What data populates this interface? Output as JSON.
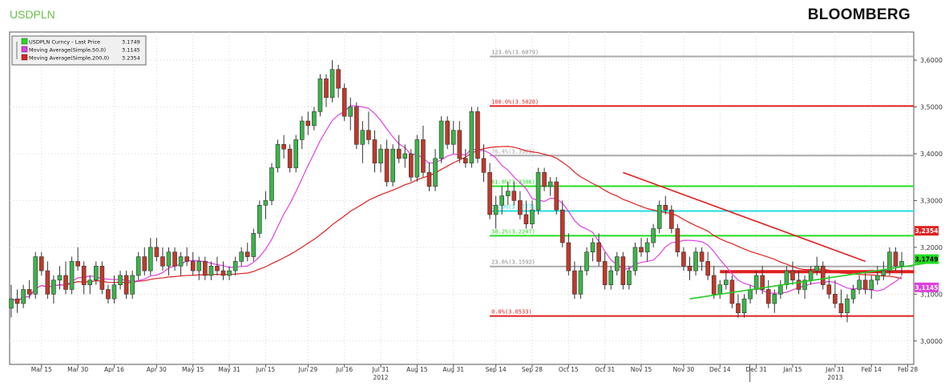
{
  "header": {
    "ticker": "USDPLN",
    "brand": "BLOOMBERG"
  },
  "colors": {
    "candle_up": "#3cb44b",
    "candle_down": "#c0392b",
    "ma50": "#e040e0",
    "ma200": "#e02020",
    "fib_red": "#e02020",
    "fib_green": "#22dd22",
    "fib_cyan": "#22dddd",
    "fib_gray": "#aaaaaa",
    "trend_red": "#e02020",
    "trend_green": "#22cc22"
  },
  "chart_data": {
    "type": "candlestick",
    "title": "USDPLN",
    "ylim": [
      2.95,
      3.66
    ],
    "y_ticks": [
      "3,6000",
      "3,5000",
      "3,4000",
      "3,3000",
      "3,2000",
      "3,1000",
      "3,0000"
    ],
    "y_tick_values": [
      3.6,
      3.5,
      3.4,
      3.3,
      3.2,
      3.1,
      3.0
    ],
    "x_ticks": [
      "Mar 15",
      "Mar 30",
      "Apr 16",
      "Apr 30",
      "May 15",
      "May 31",
      "Jun 15",
      "Jun 29",
      "Jul 16",
      "Jul 31",
      "Aug 15",
      "Aug 31",
      "Sep 14",
      "Sep 28",
      "Oct 15",
      "Oct 31",
      "Nov 15",
      "Nov 30",
      "Dec 14",
      "Dec 31",
      "Jan 15",
      "Jan 31",
      "Feb 14",
      "Feb 28"
    ],
    "x_years": [
      "2012",
      "2013"
    ],
    "legend": [
      {
        "label": "USDPLN Curncy - Last Price",
        "value": "3.1749",
        "color": "#22dd22"
      },
      {
        "label": "Moving Average(Simple,50,0)",
        "value": "3.1145",
        "color": "#e040e0"
      },
      {
        "label": "Moving Average(Simple,200,0)",
        "value": "3.2354",
        "color": "#e02020"
      }
    ],
    "last_values": [
      {
        "label": "3,2354",
        "value": 3.2354,
        "color": "#e02020"
      },
      {
        "label": "3,1749",
        "value": 3.1749,
        "color": "#22dd22"
      },
      {
        "label": "3,1145",
        "value": 3.1145,
        "color": "#e040e0"
      }
    ],
    "fib_levels": [
      {
        "label": "123.6%(3.6079)",
        "value": 3.6079,
        "color": "#aaaaaa",
        "label_color": "#888888"
      },
      {
        "label": "100.0%(3.5020)",
        "value": 3.502,
        "color": "#e02020",
        "label_color": "#e02020"
      },
      {
        "label": "76.4%(3.3961)",
        "value": 3.3961,
        "color": "#aaaaaa",
        "label_color": "#aaaaaa"
      },
      {
        "label": "61.8%(3.3306)",
        "value": 3.3306,
        "color": "#22dd22",
        "label_color": "#22dd22"
      },
      {
        "label": "50.0%(3.2777)",
        "value": 3.2777,
        "color": "#22dddd",
        "label_color": "#22dddd"
      },
      {
        "label": "38.2%(3.2247)",
        "value": 3.2247,
        "color": "#22dd22",
        "label_color": "#22dd22"
      },
      {
        "label": "23.6%(3.1592)",
        "value": 3.1592,
        "color": "#aaaaaa",
        "label_color": "#888888"
      },
      {
        "label": "0.0%(3.0533)",
        "value": 3.0533,
        "color": "#e02020",
        "label_color": "#e02020"
      }
    ],
    "support_line": {
      "value": 3.148,
      "from": "Dec 14",
      "to": "Feb 28"
    },
    "trendlines": [
      {
        "name": "downtrend",
        "color": "#e02020",
        "points": [
          [
            101,
            3.36
          ],
          [
            141,
            3.17
          ]
        ]
      },
      {
        "name": "uptrend",
        "color": "#22cc22",
        "points": [
          [
            112,
            3.09
          ],
          [
            153,
            3.17
          ]
        ]
      }
    ],
    "ohlc": [
      [
        0,
        3.07,
        3.12,
        3.05,
        3.09
      ],
      [
        1,
        3.09,
        3.11,
        3.06,
        3.08
      ],
      [
        2,
        3.08,
        3.12,
        3.07,
        3.11
      ],
      [
        3,
        3.11,
        3.13,
        3.09,
        3.1
      ],
      [
        4,
        3.1,
        3.19,
        3.09,
        3.18
      ],
      [
        5,
        3.18,
        3.19,
        3.14,
        3.15
      ],
      [
        6,
        3.15,
        3.17,
        3.09,
        3.1
      ],
      [
        7,
        3.1,
        3.14,
        3.08,
        3.13
      ],
      [
        8,
        3.13,
        3.16,
        3.11,
        3.14
      ],
      [
        9,
        3.14,
        3.17,
        3.1,
        3.11
      ],
      [
        10,
        3.11,
        3.18,
        3.1,
        3.17
      ],
      [
        11,
        3.17,
        3.2,
        3.15,
        3.16
      ],
      [
        12,
        3.16,
        3.17,
        3.1,
        3.12
      ],
      [
        13,
        3.12,
        3.14,
        3.1,
        3.13
      ],
      [
        14,
        3.13,
        3.17,
        3.12,
        3.16
      ],
      [
        15,
        3.16,
        3.17,
        3.1,
        3.11
      ],
      [
        16,
        3.11,
        3.12,
        3.08,
        3.09
      ],
      [
        17,
        3.09,
        3.14,
        3.08,
        3.12
      ],
      [
        18,
        3.12,
        3.15,
        3.11,
        3.14
      ],
      [
        19,
        3.14,
        3.15,
        3.09,
        3.1
      ],
      [
        20,
        3.1,
        3.15,
        3.09,
        3.14
      ],
      [
        21,
        3.14,
        3.19,
        3.13,
        3.18
      ],
      [
        22,
        3.18,
        3.2,
        3.14,
        3.15
      ],
      [
        23,
        3.15,
        3.22,
        3.14,
        3.2
      ],
      [
        24,
        3.2,
        3.22,
        3.17,
        3.18
      ],
      [
        25,
        3.18,
        3.2,
        3.15,
        3.16
      ],
      [
        26,
        3.16,
        3.2,
        3.14,
        3.19
      ],
      [
        27,
        3.19,
        3.2,
        3.15,
        3.16
      ],
      [
        28,
        3.16,
        3.19,
        3.14,
        3.18
      ],
      [
        29,
        3.18,
        3.2,
        3.16,
        3.17
      ],
      [
        30,
        3.17,
        3.19,
        3.14,
        3.15
      ],
      [
        31,
        3.15,
        3.18,
        3.13,
        3.17
      ],
      [
        32,
        3.17,
        3.18,
        3.13,
        3.14
      ],
      [
        33,
        3.14,
        3.17,
        3.13,
        3.16
      ],
      [
        34,
        3.16,
        3.18,
        3.14,
        3.15
      ],
      [
        35,
        3.15,
        3.17,
        3.13,
        3.14
      ],
      [
        36,
        3.14,
        3.16,
        3.13,
        3.15
      ],
      [
        37,
        3.15,
        3.18,
        3.14,
        3.17
      ],
      [
        38,
        3.17,
        3.2,
        3.16,
        3.19
      ],
      [
        39,
        3.19,
        3.21,
        3.17,
        3.18
      ],
      [
        40,
        3.18,
        3.24,
        3.17,
        3.23
      ],
      [
        41,
        3.23,
        3.3,
        3.22,
        3.29
      ],
      [
        42,
        3.29,
        3.32,
        3.26,
        3.3
      ],
      [
        43,
        3.3,
        3.38,
        3.29,
        3.37
      ],
      [
        44,
        3.37,
        3.43,
        3.36,
        3.42
      ],
      [
        45,
        3.42,
        3.44,
        3.39,
        3.41
      ],
      [
        46,
        3.41,
        3.42,
        3.36,
        3.37
      ],
      [
        47,
        3.37,
        3.44,
        3.36,
        3.43
      ],
      [
        48,
        3.43,
        3.48,
        3.41,
        3.47
      ],
      [
        49,
        3.47,
        3.49,
        3.44,
        3.46
      ],
      [
        50,
        3.46,
        3.5,
        3.45,
        3.49
      ],
      [
        51,
        3.49,
        3.57,
        3.48,
        3.56
      ],
      [
        52,
        3.56,
        3.57,
        3.5,
        3.52
      ],
      [
        53,
        3.52,
        3.6,
        3.51,
        3.58
      ],
      [
        54,
        3.58,
        3.59,
        3.52,
        3.54
      ],
      [
        55,
        3.54,
        3.55,
        3.47,
        3.48
      ],
      [
        56,
        3.48,
        3.52,
        3.45,
        3.5
      ],
      [
        57,
        3.5,
        3.51,
        3.41,
        3.42
      ],
      [
        58,
        3.42,
        3.47,
        3.38,
        3.45
      ],
      [
        59,
        3.45,
        3.49,
        3.42,
        3.43
      ],
      [
        60,
        3.43,
        3.45,
        3.36,
        3.38
      ],
      [
        61,
        3.38,
        3.42,
        3.36,
        3.41
      ],
      [
        62,
        3.41,
        3.43,
        3.33,
        3.34
      ],
      [
        63,
        3.34,
        3.42,
        3.33,
        3.41
      ],
      [
        64,
        3.41,
        3.44,
        3.38,
        3.39
      ],
      [
        65,
        3.39,
        3.42,
        3.37,
        3.4
      ],
      [
        66,
        3.4,
        3.41,
        3.34,
        3.35
      ],
      [
        67,
        3.35,
        3.44,
        3.34,
        3.43
      ],
      [
        68,
        3.43,
        3.46,
        3.35,
        3.36
      ],
      [
        69,
        3.36,
        3.38,
        3.32,
        3.33
      ],
      [
        70,
        3.33,
        3.41,
        3.32,
        3.39
      ],
      [
        71,
        3.39,
        3.48,
        3.38,
        3.47
      ],
      [
        72,
        3.47,
        3.48,
        3.41,
        3.42
      ],
      [
        73,
        3.42,
        3.47,
        3.4,
        3.45
      ],
      [
        74,
        3.45,
        3.47,
        3.38,
        3.39
      ],
      [
        75,
        3.39,
        3.41,
        3.37,
        3.38
      ],
      [
        76,
        3.38,
        3.5,
        3.37,
        3.49
      ],
      [
        77,
        3.49,
        3.5,
        3.38,
        3.39
      ],
      [
        78,
        3.39,
        3.42,
        3.34,
        3.36
      ],
      [
        79,
        3.36,
        3.38,
        3.26,
        3.27
      ],
      [
        80,
        3.27,
        3.31,
        3.24,
        3.29
      ],
      [
        81,
        3.29,
        3.33,
        3.27,
        3.31
      ],
      [
        82,
        3.31,
        3.34,
        3.29,
        3.32
      ],
      [
        83,
        3.32,
        3.34,
        3.29,
        3.3
      ],
      [
        84,
        3.3,
        3.32,
        3.26,
        3.27
      ],
      [
        85,
        3.27,
        3.3,
        3.24,
        3.25
      ],
      [
        86,
        3.25,
        3.3,
        3.24,
        3.28
      ],
      [
        87,
        3.28,
        3.37,
        3.27,
        3.36
      ],
      [
        88,
        3.36,
        3.37,
        3.32,
        3.33
      ],
      [
        89,
        3.33,
        3.35,
        3.31,
        3.34
      ],
      [
        90,
        3.34,
        3.35,
        3.27,
        3.28
      ],
      [
        91,
        3.28,
        3.3,
        3.2,
        3.21
      ],
      [
        92,
        3.21,
        3.23,
        3.14,
        3.15
      ],
      [
        93,
        3.15,
        3.17,
        3.09,
        3.1
      ],
      [
        94,
        3.1,
        3.16,
        3.09,
        3.15
      ],
      [
        95,
        3.15,
        3.2,
        3.14,
        3.19
      ],
      [
        96,
        3.19,
        3.22,
        3.17,
        3.21
      ],
      [
        97,
        3.21,
        3.23,
        3.16,
        3.17
      ],
      [
        98,
        3.17,
        3.19,
        3.11,
        3.12
      ],
      [
        99,
        3.12,
        3.16,
        3.11,
        3.15
      ],
      [
        100,
        3.15,
        3.19,
        3.14,
        3.18
      ],
      [
        101,
        3.18,
        3.19,
        3.11,
        3.12
      ],
      [
        102,
        3.12,
        3.16,
        3.11,
        3.15
      ],
      [
        103,
        3.15,
        3.21,
        3.14,
        3.2
      ],
      [
        104,
        3.2,
        3.22,
        3.18,
        3.19
      ],
      [
        105,
        3.19,
        3.22,
        3.17,
        3.21
      ],
      [
        106,
        3.21,
        3.25,
        3.2,
        3.24
      ],
      [
        107,
        3.24,
        3.3,
        3.23,
        3.29
      ],
      [
        108,
        3.29,
        3.31,
        3.27,
        3.28
      ],
      [
        109,
        3.28,
        3.29,
        3.23,
        3.24
      ],
      [
        110,
        3.24,
        3.25,
        3.18,
        3.19
      ],
      [
        111,
        3.19,
        3.2,
        3.15,
        3.16
      ],
      [
        112,
        3.16,
        3.18,
        3.13,
        3.15
      ],
      [
        113,
        3.15,
        3.2,
        3.14,
        3.19
      ],
      [
        114,
        3.19,
        3.2,
        3.15,
        3.17
      ],
      [
        115,
        3.17,
        3.19,
        3.13,
        3.14
      ],
      [
        116,
        3.14,
        3.16,
        3.09,
        3.1
      ],
      [
        117,
        3.1,
        3.13,
        3.09,
        3.12
      ],
      [
        118,
        3.12,
        3.15,
        3.11,
        3.13
      ],
      [
        119,
        3.13,
        3.14,
        3.07,
        3.08
      ],
      [
        120,
        3.08,
        3.1,
        3.05,
        3.06
      ],
      [
        121,
        3.06,
        3.1,
        3.05,
        3.09
      ],
      [
        122,
        3.09,
        3.12,
        3.08,
        3.11
      ],
      [
        123,
        3.11,
        3.15,
        3.1,
        3.14
      ],
      [
        124,
        3.14,
        3.16,
        3.1,
        3.11
      ],
      [
        125,
        3.11,
        3.13,
        3.07,
        3.08
      ],
      [
        126,
        3.08,
        3.11,
        3.06,
        3.1
      ],
      [
        127,
        3.1,
        3.13,
        3.09,
        3.12
      ],
      [
        128,
        3.12,
        3.16,
        3.11,
        3.15
      ],
      [
        129,
        3.15,
        3.17,
        3.12,
        3.13
      ],
      [
        130,
        3.13,
        3.15,
        3.1,
        3.11
      ],
      [
        131,
        3.11,
        3.14,
        3.09,
        3.13
      ],
      [
        132,
        3.13,
        3.16,
        3.12,
        3.15
      ],
      [
        133,
        3.15,
        3.18,
        3.14,
        3.16
      ],
      [
        134,
        3.16,
        3.17,
        3.11,
        3.12
      ],
      [
        135,
        3.12,
        3.14,
        3.09,
        3.1
      ],
      [
        136,
        3.1,
        3.13,
        3.07,
        3.08
      ],
      [
        137,
        3.08,
        3.11,
        3.05,
        3.06
      ],
      [
        138,
        3.06,
        3.1,
        3.04,
        3.09
      ],
      [
        139,
        3.09,
        3.12,
        3.08,
        3.11
      ],
      [
        140,
        3.11,
        3.14,
        3.1,
        3.13
      ],
      [
        141,
        3.13,
        3.15,
        3.1,
        3.11
      ],
      [
        142,
        3.11,
        3.14,
        3.09,
        3.13
      ],
      [
        143,
        3.13,
        3.16,
        3.12,
        3.14
      ],
      [
        144,
        3.14,
        3.17,
        3.13,
        3.15
      ],
      [
        145,
        3.15,
        3.2,
        3.14,
        3.19
      ],
      [
        146,
        3.19,
        3.2,
        3.15,
        3.16
      ],
      [
        147,
        3.16,
        3.19,
        3.14,
        3.17
      ]
    ]
  }
}
